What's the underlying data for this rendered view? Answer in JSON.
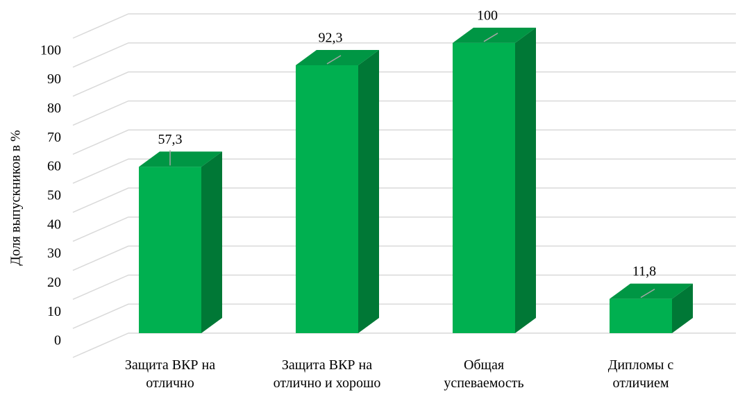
{
  "chart_data": {
    "type": "bar3d",
    "y_label": "Доля выпускников в %",
    "categories": [
      "Защита ВКР на\nотлично",
      "Защита ВКР на\nотлично и хорошо",
      "Общая\nуспеваемость",
      "Дипломы с\nотличием"
    ],
    "values": [
      57.3,
      92.3,
      100,
      11.8
    ],
    "value_labels": [
      "57,3",
      "92,3",
      "100",
      "11,8"
    ],
    "color": "#00b050",
    "ylim": [
      0,
      110
    ],
    "yticks": [
      0,
      10,
      20,
      30,
      40,
      50,
      60,
      70,
      80,
      90,
      100
    ],
    "grid": true
  }
}
